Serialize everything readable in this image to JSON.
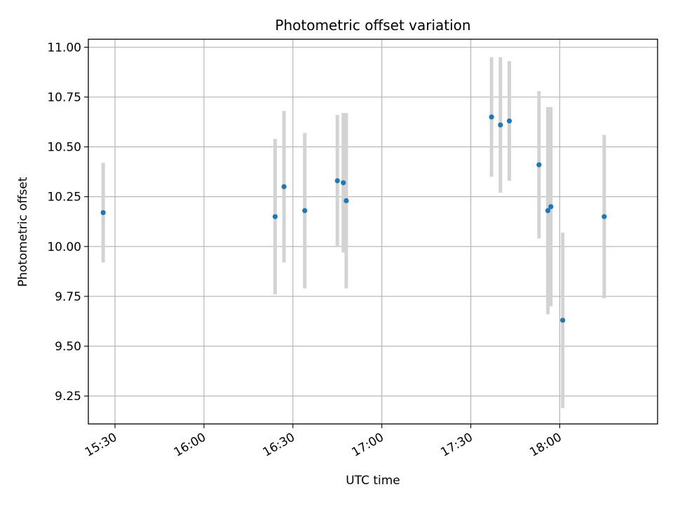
{
  "chart_data": {
    "type": "scatter",
    "title": "Photometric offset variation",
    "xlabel": "UTC time",
    "ylabel": "Photometric offset",
    "grid": true,
    "xlim": [
      "15:21",
      "18:33"
    ],
    "ylim": [
      9.11,
      11.04
    ],
    "x_ticks": [
      "15:30",
      "16:00",
      "16:30",
      "17:00",
      "17:30",
      "18:00"
    ],
    "y_ticks": [
      "9.25",
      "9.50",
      "9.75",
      "10.00",
      "10.25",
      "10.50",
      "10.75",
      "11.00"
    ],
    "colors": {
      "point": "#1f77b4",
      "errorbar": "#d3d3d3",
      "grid": "#b0b0b0"
    },
    "series": [
      {
        "points": [
          {
            "x": "15:26",
            "y": 10.17,
            "err": 0.25
          },
          {
            "x": "16:24",
            "y": 10.15,
            "err": 0.39
          },
          {
            "x": "16:27",
            "y": 10.3,
            "err": 0.38
          },
          {
            "x": "16:34",
            "y": 10.18,
            "err": 0.39
          },
          {
            "x": "16:45",
            "y": 10.33,
            "err": 0.33
          },
          {
            "x": "16:47",
            "y": 10.32,
            "err": 0.35
          },
          {
            "x": "16:48",
            "y": 10.23,
            "err": 0.44
          },
          {
            "x": "17:37",
            "y": 10.65,
            "err": 0.3
          },
          {
            "x": "17:40",
            "y": 10.61,
            "err": 0.34
          },
          {
            "x": "17:43",
            "y": 10.63,
            "err": 0.3
          },
          {
            "x": "17:53",
            "y": 10.41,
            "err": 0.37
          },
          {
            "x": "17:56",
            "y": 10.18,
            "err": 0.52
          },
          {
            "x": "17:57",
            "y": 10.2,
            "err": 0.5
          },
          {
            "x": "18:01",
            "y": 9.63,
            "err": 0.44
          },
          {
            "x": "18:15",
            "y": 10.15,
            "err": 0.41
          }
        ]
      }
    ]
  }
}
